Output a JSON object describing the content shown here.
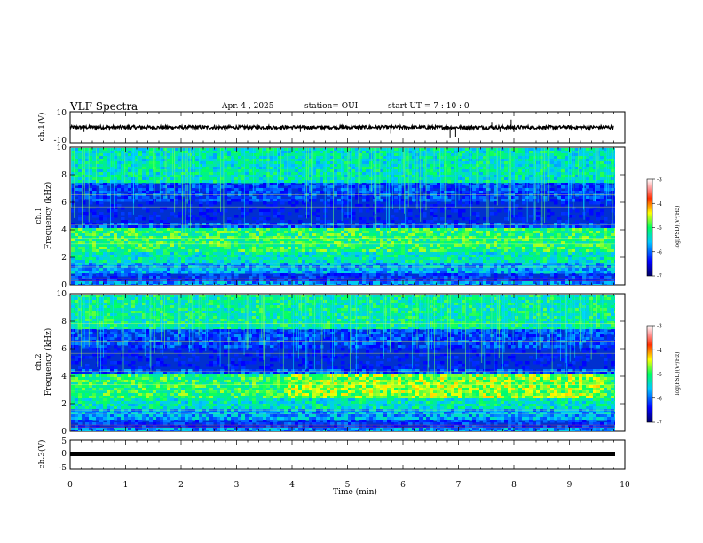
{
  "header": {
    "title": "VLF Spectra",
    "date": "Apr. 4 , 2025",
    "station": "station= OUI",
    "start": "start UT =  7 : 10 : 0"
  },
  "chart_data": [
    {
      "type": "line",
      "panel": "ch1-waveform",
      "ylabel": "ch.1(V)",
      "ylim": [
        -10,
        10
      ],
      "yticks": [
        "10",
        "-10"
      ],
      "xlim": [
        0,
        10
      ],
      "series_color": "#000000",
      "baseline": 0,
      "spikes": [
        {
          "x": 0.25,
          "y": -3
        },
        {
          "x": 2.8,
          "y": -2.5
        },
        {
          "x": 4.15,
          "y": -3
        },
        {
          "x": 5.78,
          "y": -4
        },
        {
          "x": 6.85,
          "y": -6.5
        },
        {
          "x": 6.95,
          "y": -6
        },
        {
          "x": 7.6,
          "y": 3
        },
        {
          "x": 7.75,
          "y": -3
        },
        {
          "x": 7.95,
          "y": 5
        },
        {
          "x": 8.0,
          "y": -3
        },
        {
          "x": 9.35,
          "y": -2
        }
      ]
    },
    {
      "type": "heatmap",
      "panel": "ch1-spectrogram",
      "ylabel_line1": "ch.1",
      "ylabel_line2": "Frequency (kHz)",
      "ylim": [
        0,
        10
      ],
      "yticks": [
        "0",
        "2",
        "4",
        "6",
        "8",
        "10"
      ],
      "xlim": [
        0,
        9.8
      ],
      "colorbar_label": "log(PSD)(V²/Hz)",
      "colorbar_ticks": [
        "-3",
        "-4",
        "-5",
        "-6",
        "-7"
      ],
      "colorbar_range": [
        -7,
        -3
      ]
    },
    {
      "type": "heatmap",
      "panel": "ch2-spectrogram",
      "ylabel_line1": "ch.2",
      "ylabel_line2": "Frequency (kHz)",
      "ylim": [
        0,
        10
      ],
      "yticks": [
        "0",
        "2",
        "4",
        "6",
        "8",
        "10"
      ],
      "xlim": [
        0,
        9.8
      ],
      "colorbar_label": "log(PSD)(V²/Hz)",
      "colorbar_ticks": [
        "-3",
        "-4",
        "-5",
        "-6",
        "-7"
      ],
      "colorbar_range": [
        -7,
        -3
      ]
    },
    {
      "type": "line",
      "panel": "ch3-waveform",
      "ylabel": "ch.3(V)",
      "ylim": [
        -5,
        5
      ],
      "yticks": [
        "5",
        "0",
        "-5"
      ],
      "xlim": [
        0,
        10
      ],
      "baseline": 0,
      "series_color": "#000000"
    }
  ],
  "xaxis": {
    "label": "Time (min)",
    "ticks": [
      "0",
      "1",
      "2",
      "3",
      "4",
      "5",
      "6",
      "7",
      "8",
      "9",
      "10"
    ],
    "range": [
      0,
      10
    ]
  }
}
